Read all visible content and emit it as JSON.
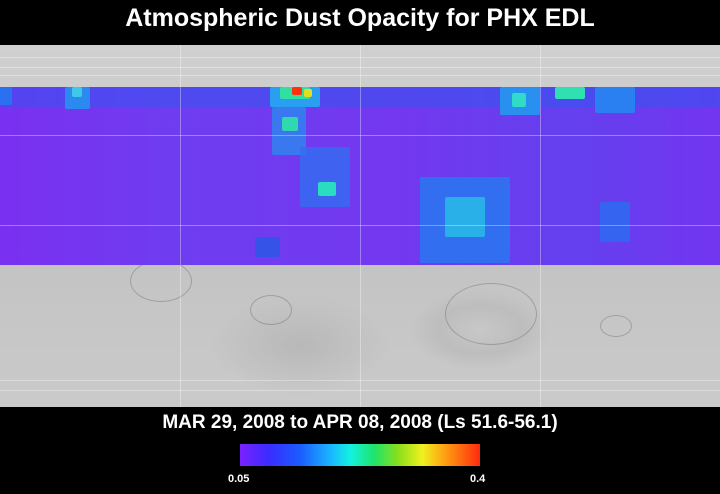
{
  "title": "Atmospheric Dust Opacity for PHX EDL",
  "date_range": "MAR 29, 2008 to APR 08, 2008 (Ls 51.6-56.1)",
  "colorbar": {
    "min_label": "0.05",
    "max_label": "0.4",
    "colors": [
      "#7a22ff",
      "#1b5cff",
      "#13f2e0",
      "#1fe36a",
      "#f0f020",
      "#ff2a10"
    ]
  },
  "map": {
    "background": "grey shaded-relief Mars basemap",
    "data_colors": {
      "low": "#7338ef",
      "medium": "#2a6cf0",
      "high": "#2adcc0",
      "peak": "#ff3010"
    }
  }
}
